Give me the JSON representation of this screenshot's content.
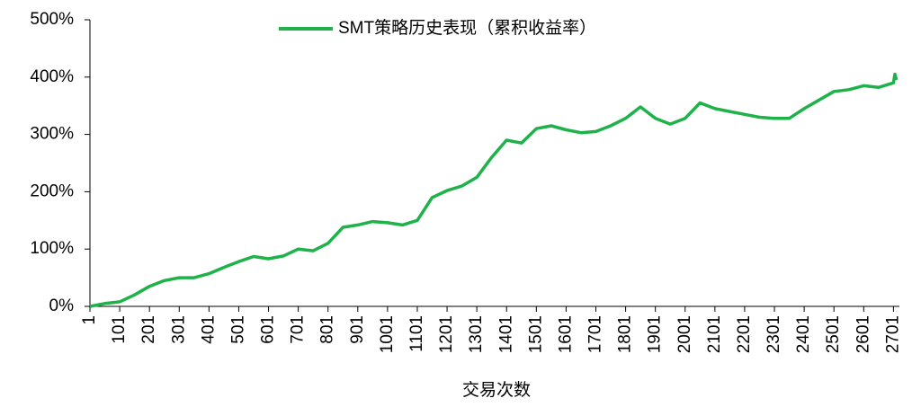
{
  "chart_data": {
    "type": "line",
    "legend": "top",
    "xlabel": "交易次数",
    "x": [
      1,
      51,
      101,
      151,
      201,
      251,
      301,
      351,
      401,
      451,
      501,
      551,
      601,
      651,
      701,
      751,
      801,
      851,
      901,
      951,
      1001,
      1051,
      1101,
      1151,
      1201,
      1251,
      1301,
      1351,
      1401,
      1451,
      1501,
      1551,
      1601,
      1651,
      1701,
      1751,
      1801,
      1851,
      1901,
      1951,
      2001,
      2051,
      2101,
      2151,
      2201,
      2251,
      2301,
      2351,
      2401,
      2451,
      2501,
      2551,
      2601,
      2651,
      2701,
      2706,
      2711
    ],
    "series": [
      {
        "name": "SMT策略历史表现（累积收益率）",
        "color": "#1fb24a",
        "values": [
          0,
          5,
          8,
          20,
          35,
          45,
          50,
          50,
          57,
          68,
          78,
          87,
          83,
          88,
          100,
          97,
          110,
          138,
          142,
          148,
          146,
          142,
          150,
          190,
          202,
          210,
          225,
          260,
          290,
          285,
          310,
          315,
          308,
          303,
          305,
          315,
          328,
          348,
          328,
          318,
          328,
          355,
          345,
          340,
          335,
          330,
          328,
          328,
          345,
          360,
          375,
          378,
          385,
          382,
          390,
          405,
          395
        ]
      }
    ],
    "xlim": [
      1,
      2721
    ],
    "xticks": [
      1,
      101,
      201,
      301,
      401,
      501,
      601,
      701,
      801,
      901,
      1001,
      1101,
      1201,
      1301,
      1401,
      1501,
      1601,
      1701,
      1801,
      1901,
      2001,
      2101,
      2201,
      2301,
      2401,
      2501,
      2601,
      2701
    ],
    "ylim": [
      0,
      500
    ],
    "yticks": [
      {
        "value": 0,
        "label": "0%"
      },
      {
        "value": 100,
        "label": "100%"
      },
      {
        "value": 200,
        "label": "200%"
      },
      {
        "value": 300,
        "label": "300%"
      },
      {
        "value": 400,
        "label": "400%"
      },
      {
        "value": 500,
        "label": "500%"
      }
    ],
    "grid": false
  }
}
